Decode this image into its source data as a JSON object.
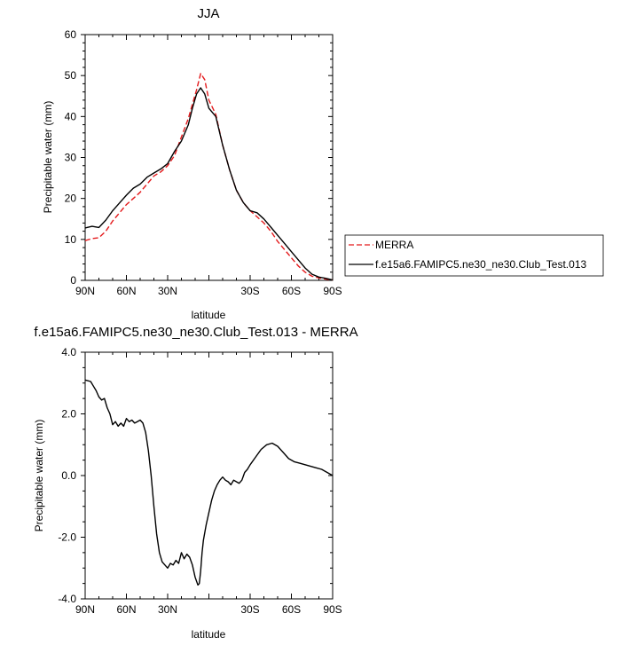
{
  "chart_data": [
    {
      "type": "line",
      "title": "JJA",
      "xlabel": "latitude",
      "ylabel": "Precipitable water (mm)",
      "xlim": [
        90,
        -90
      ],
      "ylim": [
        0,
        60
      ],
      "xticks": [
        90,
        60,
        30,
        0,
        -30,
        -60,
        -90
      ],
      "xtick_labels": [
        "90N",
        "60N",
        "30N",
        "",
        "30S",
        "60S",
        "90S"
      ],
      "yticks": [
        0,
        10,
        20,
        30,
        40,
        50,
        60
      ],
      "ytick_labels": [
        "0",
        "10",
        "20",
        "30",
        "40",
        "50",
        "60"
      ],
      "legend_position": "outside-right",
      "series": [
        {
          "name": "MERRA",
          "color": "#e41a1c",
          "dash": "dashed",
          "x": [
            90,
            85,
            80,
            75,
            70,
            65,
            60,
            55,
            50,
            45,
            40,
            35,
            30,
            25,
            20,
            15,
            12,
            9,
            6,
            3,
            0,
            -5,
            -10,
            -15,
            -20,
            -25,
            -30,
            -35,
            -40,
            -45,
            -50,
            -55,
            -60,
            -65,
            -70,
            -75,
            -80,
            -85,
            -90
          ],
          "y": [
            9.7,
            10.2,
            10.4,
            12,
            14.5,
            16.5,
            18.5,
            20,
            21.5,
            23.5,
            25.5,
            26.5,
            28,
            30.5,
            35,
            39.5,
            43,
            46.5,
            50.5,
            49,
            44,
            40.5,
            33,
            27,
            22,
            19,
            17,
            15.5,
            14,
            12,
            9.5,
            7.5,
            5.5,
            3.5,
            2,
            1,
            0.6,
            0.3,
            0.1
          ]
        },
        {
          "name": "f.e15a6.FAMIPC5.ne30_ne30.Club_Test.013",
          "color": "#000000",
          "dash": "solid",
          "x": [
            90,
            85,
            80,
            75,
            70,
            65,
            60,
            55,
            50,
            45,
            40,
            35,
            30,
            25,
            20,
            15,
            12,
            9,
            6,
            3,
            0,
            -5,
            -10,
            -15,
            -20,
            -25,
            -30,
            -35,
            -40,
            -45,
            -50,
            -55,
            -60,
            -65,
            -70,
            -75,
            -80,
            -85,
            -90
          ],
          "y": [
            12.8,
            13.2,
            12.9,
            14.7,
            17,
            18.9,
            20.8,
            22.5,
            23.5,
            25.2,
            26.2,
            27.2,
            28.5,
            31.5,
            34,
            38,
            42,
            45.5,
            47,
            45.5,
            42,
            40,
            33,
            27,
            22,
            19,
            17,
            16.5,
            15,
            13,
            11,
            9,
            7,
            5,
            3,
            1.5,
            0.8,
            0.5,
            0.1
          ]
        }
      ]
    },
    {
      "type": "line",
      "title": "f.e15a6.FAMIPC5.ne30_ne30.Club_Test.013 - MERRA",
      "xlabel": "latitude",
      "ylabel": "Precipitable water (mm)",
      "xlim": [
        90,
        -90
      ],
      "ylim": [
        -4,
        4
      ],
      "xticks": [
        90,
        60,
        30,
        0,
        -30,
        -60,
        -90
      ],
      "xtick_labels": [
        "90N",
        "60N",
        "30N",
        "",
        "30S",
        "60S",
        "90S"
      ],
      "yticks": [
        -4,
        -2,
        0,
        2,
        4
      ],
      "ytick_labels": [
        "-4.0",
        "-2.0",
        "0.0",
        "2.0",
        "4.0"
      ],
      "series": [
        {
          "color": "#000000",
          "dash": "solid",
          "x": [
            90,
            86,
            84,
            82,
            80,
            78,
            76,
            74,
            72,
            70,
            68,
            66,
            64,
            62,
            60,
            58,
            56,
            54,
            52,
            50,
            48,
            46,
            44,
            42,
            40,
            38,
            36,
            34,
            32,
            30,
            28,
            26,
            24,
            22,
            20,
            18,
            16,
            14,
            12,
            10,
            8,
            7,
            6,
            5,
            4,
            2,
            0,
            -2,
            -4,
            -6,
            -8,
            -10,
            -12,
            -14,
            -16,
            -18,
            -20,
            -22,
            -24,
            -26,
            -28,
            -30,
            -34,
            -38,
            -42,
            -46,
            -50,
            -54,
            -58,
            -62,
            -66,
            -70,
            -74,
            -78,
            -82,
            -86,
            -90
          ],
          "y": [
            3.1,
            3.05,
            2.9,
            2.75,
            2.55,
            2.45,
            2.5,
            2.2,
            2.0,
            1.65,
            1.75,
            1.6,
            1.7,
            1.6,
            1.85,
            1.75,
            1.8,
            1.7,
            1.75,
            1.8,
            1.7,
            1.4,
            0.8,
            0.0,
            -1.0,
            -1.9,
            -2.5,
            -2.8,
            -2.9,
            -3.0,
            -2.85,
            -2.9,
            -2.75,
            -2.85,
            -2.5,
            -2.7,
            -2.55,
            -2.65,
            -2.9,
            -3.3,
            -3.55,
            -3.5,
            -3.1,
            -2.5,
            -2.1,
            -1.6,
            -1.2,
            -0.8,
            -0.5,
            -0.3,
            -0.15,
            -0.05,
            -0.15,
            -0.2,
            -0.3,
            -0.15,
            -0.2,
            -0.25,
            -0.15,
            0.1,
            0.2,
            0.35,
            0.6,
            0.85,
            1.0,
            1.05,
            0.95,
            0.75,
            0.55,
            0.45,
            0.4,
            0.35,
            0.3,
            0.25,
            0.2,
            0.1,
            0.0
          ]
        }
      ]
    }
  ]
}
